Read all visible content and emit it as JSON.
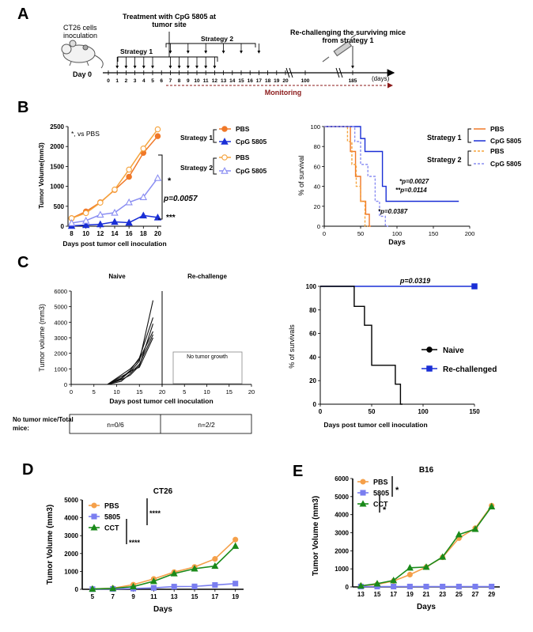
{
  "figure": {
    "panels": {
      "a": "A",
      "b": "B",
      "c": "C",
      "d": "D",
      "e": "E"
    }
  },
  "panel_a": {
    "inoculation_label_1": "CT26 cells",
    "inoculation_label_2": "inoculation",
    "day0": "Day 0",
    "treatment_label_1": "Treatment with CpG 5805 at",
    "treatment_label_2": "tumor site",
    "strategy1": "Strategy 1",
    "strategy2": "Strategy 2",
    "rechallenge_label": "Re-challenging the surviving mice",
    "rechallenge_label_2": "from strategy 1",
    "days_unit": "(days)",
    "monitoring": "Monitoring",
    "timeline_ticks": [
      "0",
      "1",
      "2",
      "3",
      "4",
      "5",
      "6",
      "7",
      "8",
      "9",
      "10",
      "11",
      "12",
      "13",
      "14",
      "15",
      "16",
      "17",
      "18",
      "19",
      "20",
      "100",
      "185"
    ]
  },
  "colors": {
    "pbs1": "#f07828",
    "cpg1": "#1a2fd6",
    "pbs2": "#f5a33c",
    "cpg2": "#8a8ef2",
    "monitoring": "#8b1a1a",
    "d_pbs": "#f5a04a",
    "d_5805": "#7a7ef0",
    "d_cct": "#1a8a1a"
  },
  "chart_data": [
    {
      "id": "B-left",
      "type": "line",
      "title": "",
      "annotation_top": "*, vs PBS",
      "xlabel": "Days post tumor cell inoculation",
      "ylabel": "Tumor Volume(mm3)",
      "x": [
        8,
        10,
        12,
        14,
        16,
        18,
        20
      ],
      "xticks": [
        "8",
        "10",
        "12",
        "14",
        "16",
        "18",
        "20"
      ],
      "yticks": [
        "0",
        "500",
        "1000",
        "1500",
        "2000",
        "2500"
      ],
      "ylim": [
        0,
        2500
      ],
      "series": [
        {
          "name": "PBS (Strategy 1)",
          "values": [
            200,
            370,
            600,
            910,
            1240,
            1840,
            2260
          ]
        },
        {
          "name": "CpG 5805 (Strategy 1)",
          "values": [
            10,
            30,
            50,
            110,
            90,
            270,
            220
          ]
        },
        {
          "name": "PBS (Strategy 2)",
          "values": [
            200,
            330,
            590,
            920,
            1420,
            1950,
            2430
          ]
        },
        {
          "name": "CpG 5805 (Strategy 2)",
          "values": [
            80,
            140,
            290,
            340,
            600,
            730,
            1210
          ]
        }
      ],
      "sig": {
        "star1": "*",
        "star3": "***",
        "p": "p=0.0057"
      },
      "legend": {
        "strategy1": "Strategy 1",
        "strategy2": "Strategy 2",
        "pbs": "PBS",
        "cpg": "CpG 5805"
      }
    },
    {
      "id": "B-right",
      "type": "line",
      "xlabel": "Days",
      "ylabel": "% of survival",
      "xticks": [
        "0",
        "50",
        "100",
        "150",
        "200"
      ],
      "yticks": [
        "0",
        "20",
        "40",
        "60",
        "80",
        "100"
      ],
      "xlim": [
        0,
        200
      ],
      "ylim": [
        0,
        100
      ],
      "series": [
        {
          "name": "PBS (Strategy 1)",
          "steps": [
            [
              0,
              100
            ],
            [
              36,
              100
            ],
            [
              36,
              75
            ],
            [
              43,
              75
            ],
            [
              43,
              50
            ],
            [
              50,
              50
            ],
            [
              50,
              25
            ],
            [
              57,
              25
            ],
            [
              57,
              12
            ],
            [
              62,
              12
            ],
            [
              62,
              0
            ],
            [
              64,
              0
            ]
          ]
        },
        {
          "name": "CpG 5805 (Strategy 1)",
          "steps": [
            [
              0,
              100
            ],
            [
              50,
              100
            ],
            [
              50,
              88
            ],
            [
              56,
              88
            ],
            [
              56,
              75
            ],
            [
              80,
              75
            ],
            [
              80,
              40
            ],
            [
              85,
              40
            ],
            [
              85,
              25
            ],
            [
              185,
              25
            ]
          ]
        },
        {
          "name": "PBS (Strategy 2)",
          "steps": [
            [
              0,
              100
            ],
            [
              32,
              100
            ],
            [
              32,
              85
            ],
            [
              38,
              85
            ],
            [
              38,
              62
            ],
            [
              44,
              62
            ],
            [
              44,
              40
            ],
            [
              50,
              40
            ],
            [
              50,
              25
            ],
            [
              56,
              25
            ],
            [
              56,
              0
            ],
            [
              60,
              0
            ]
          ]
        },
        {
          "name": "CpG 5805 (Strategy 2)",
          "steps": [
            [
              0,
              100
            ],
            [
              42,
              100
            ],
            [
              42,
              85
            ],
            [
              50,
              85
            ],
            [
              50,
              62
            ],
            [
              60,
              62
            ],
            [
              60,
              50
            ],
            [
              70,
              50
            ],
            [
              70,
              25
            ],
            [
              76,
              25
            ],
            [
              76,
              10
            ],
            [
              84,
              10
            ],
            [
              84,
              0
            ],
            [
              88,
              0
            ]
          ]
        }
      ],
      "annotations": [
        "*p=0.0027",
        "**p=0.0114",
        "*p=0.0387"
      ],
      "legend": {
        "strategy1": "Strategy 1",
        "strategy2": "Strategy 2",
        "pbs": "PBS",
        "cpg": "CpG 5805"
      }
    },
    {
      "id": "C-left",
      "type": "line",
      "subtitle_left": "Naive",
      "subtitle_right": "Re-challenge",
      "no_growth": "No tumor growth",
      "xlabel": "Days post tumor cell inoculation",
      "ylabel": "Tumor volume (mm3)",
      "xticks": [
        "0",
        "5",
        "10",
        "15",
        "20"
      ],
      "yticks": [
        "0",
        "1000",
        "2000",
        "3000",
        "4000",
        "5000",
        "6000"
      ],
      "ylim": [
        0,
        6000
      ],
      "x": [
        8,
        11,
        13,
        15,
        18
      ],
      "series": [
        {
          "name": "mouse 1",
          "values": [
            0,
            500,
            800,
            1500,
            5400
          ]
        },
        {
          "name": "mouse 2",
          "values": [
            0,
            400,
            900,
            1700,
            4300
          ]
        },
        {
          "name": "mouse 3",
          "values": [
            0,
            300,
            600,
            1200,
            3900
          ]
        },
        {
          "name": "mouse 4",
          "values": [
            0,
            600,
            1000,
            1600,
            3400
          ]
        },
        {
          "name": "mouse 5",
          "values": [
            0,
            200,
            700,
            1300,
            3200
          ]
        },
        {
          "name": "mouse 6",
          "values": [
            0,
            350,
            850,
            1100,
            3000
          ]
        }
      ],
      "table": {
        "row_label": "No tumor mice/Total mice:",
        "naive": "n=0/6",
        "rechallenge": "n=2/2"
      }
    },
    {
      "id": "C-right",
      "type": "line",
      "xlabel": "Days post tumor cell inoculation",
      "ylabel": "% of survivals",
      "xticks": [
        "0",
        "50",
        "100",
        "150"
      ],
      "yticks": [
        "0",
        "20",
        "40",
        "60",
        "80",
        "100"
      ],
      "xlim": [
        0,
        150
      ],
      "ylim": [
        0,
        100
      ],
      "p": "p=0.0319",
      "series": [
        {
          "name": "Naive",
          "steps": [
            [
              0,
              100
            ],
            [
              33,
              100
            ],
            [
              33,
              83
            ],
            [
              43,
              83
            ],
            [
              43,
              67
            ],
            [
              50,
              67
            ],
            [
              50,
              33
            ],
            [
              73,
              33
            ],
            [
              73,
              17
            ],
            [
              78,
              17
            ],
            [
              78,
              0
            ],
            [
              80,
              0
            ]
          ]
        },
        {
          "name": "Re-challenged",
          "steps": [
            [
              0,
              100
            ],
            [
              150,
              100
            ]
          ]
        }
      ],
      "legend": {
        "naive": "Naive",
        "rechallenged": "Re-challenged"
      }
    },
    {
      "id": "D",
      "type": "line",
      "title": "CT26",
      "xlabel": "Days",
      "ylabel": "Tumor Volume (mm3)",
      "x": [
        5,
        7,
        9,
        11,
        13,
        15,
        17,
        19
      ],
      "xticks": [
        "5",
        "7",
        "9",
        "11",
        "13",
        "15",
        "17",
        "19"
      ],
      "yticks": [
        "0",
        "1000",
        "2000",
        "3000",
        "4000",
        "5000"
      ],
      "ylim": [
        0,
        5000
      ],
      "series": [
        {
          "name": "PBS",
          "values": [
            20,
            60,
            260,
            580,
            960,
            1250,
            1700,
            2780
          ]
        },
        {
          "name": "5805",
          "values": [
            10,
            20,
            40,
            80,
            150,
            160,
            240,
            320
          ]
        },
        {
          "name": "CCT",
          "values": [
            20,
            50,
            150,
            450,
            880,
            1150,
            1300,
            2420
          ]
        }
      ],
      "sig": [
        "****",
        "****"
      ],
      "legend": [
        "PBS",
        "5805",
        "CCT"
      ]
    },
    {
      "id": "E",
      "type": "line",
      "title": "B16",
      "xlabel": "Days",
      "ylabel": "Tumor Volume (mm3)",
      "x": [
        13,
        15,
        17,
        19,
        21,
        23,
        25,
        27,
        29
      ],
      "xticks": [
        "13",
        "15",
        "17",
        "19",
        "21",
        "23",
        "25",
        "27",
        "29"
      ],
      "yticks": [
        "0",
        "1000",
        "2000",
        "3000",
        "4000",
        "5000",
        "6000"
      ],
      "ylim": [
        0,
        6000
      ],
      "series": [
        {
          "name": "PBS",
          "values": [
            60,
            140,
            330,
            680,
            1100,
            1640,
            2700,
            3250,
            4500
          ]
        },
        {
          "name": "5805",
          "values": [
            20,
            20,
            20,
            20,
            20,
            20,
            20,
            20,
            20
          ]
        },
        {
          "name": "CCT",
          "values": [
            60,
            180,
            360,
            1060,
            1100,
            1660,
            2900,
            3200,
            4450
          ]
        }
      ],
      "sig": [
        "*",
        "*"
      ],
      "legend": [
        "PBS",
        "5805",
        "CCT"
      ]
    }
  ]
}
